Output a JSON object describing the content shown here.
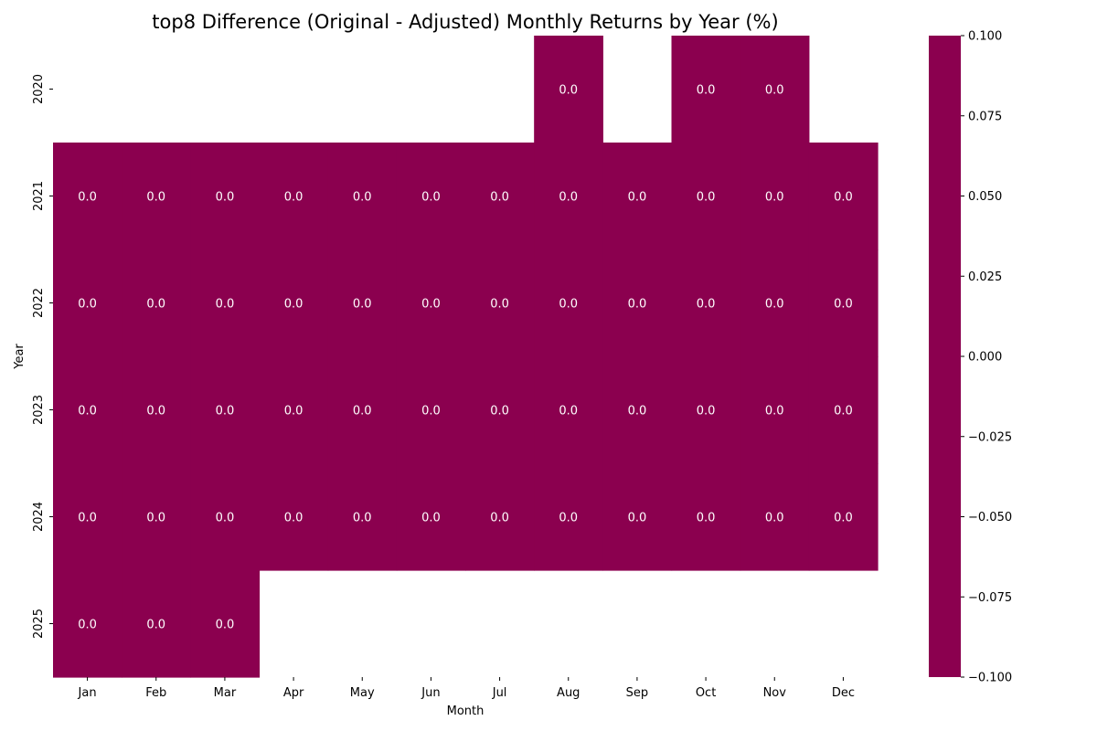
{
  "chart_data": {
    "type": "heatmap",
    "title": "top8 Difference (Original - Adjusted) Monthly Returns by Year (%)",
    "xlabel": "Month",
    "ylabel": "Year",
    "x_categories": [
      "Jan",
      "Feb",
      "Mar",
      "Apr",
      "May",
      "Jun",
      "Jul",
      "Aug",
      "Sep",
      "Oct",
      "Nov",
      "Dec"
    ],
    "y_categories": [
      "2020",
      "2021",
      "2022",
      "2023",
      "2024",
      "2025"
    ],
    "values": [
      [
        null,
        null,
        null,
        null,
        null,
        null,
        null,
        0.0,
        null,
        0.0,
        0.0,
        null
      ],
      [
        0.0,
        0.0,
        0.0,
        0.0,
        0.0,
        0.0,
        0.0,
        0.0,
        0.0,
        0.0,
        0.0,
        0.0
      ],
      [
        0.0,
        0.0,
        0.0,
        0.0,
        0.0,
        0.0,
        0.0,
        0.0,
        0.0,
        0.0,
        0.0,
        0.0
      ],
      [
        0.0,
        0.0,
        0.0,
        0.0,
        0.0,
        0.0,
        0.0,
        0.0,
        0.0,
        0.0,
        0.0,
        0.0
      ],
      [
        0.0,
        0.0,
        0.0,
        0.0,
        0.0,
        0.0,
        0.0,
        0.0,
        0.0,
        0.0,
        0.0,
        0.0
      ],
      [
        0.0,
        0.0,
        0.0,
        null,
        null,
        null,
        null,
        null,
        null,
        null,
        null,
        null
      ]
    ],
    "cell_labels": [
      [
        null,
        null,
        null,
        null,
        null,
        null,
        null,
        "0.0",
        null,
        "0.0",
        "0.0",
        null
      ],
      [
        "0.0",
        "0.0",
        "0.0",
        "0.0",
        "0.0",
        "0.0",
        "0.0",
        "0.0",
        "0.0",
        "0.0",
        "0.0",
        "0.0"
      ],
      [
        "0.0",
        "0.0",
        "0.0",
        "0.0",
        "0.0",
        "0.0",
        "0.0",
        "0.0",
        "0.0",
        "0.0",
        "0.0",
        "0.0"
      ],
      [
        "0.0",
        "0.0",
        "0.0",
        "0.0",
        "0.0",
        "0.0",
        "0.0",
        "0.0",
        "0.0",
        "0.0",
        "0.0",
        "0.0"
      ],
      [
        "0.0",
        "0.0",
        "0.0",
        "0.0",
        "0.0",
        "0.0",
        "0.0",
        "0.0",
        "0.0",
        "0.0",
        "0.0",
        "0.0"
      ],
      [
        "0.0",
        "0.0",
        "0.0",
        null,
        null,
        null,
        null,
        null,
        null,
        null,
        null,
        null
      ]
    ],
    "colorbar": {
      "range": [
        -0.1,
        0.1
      ],
      "ticks": [
        0.1,
        0.075,
        0.05,
        0.025,
        0.0,
        -0.025,
        -0.05,
        -0.075,
        -0.1
      ],
      "tick_labels": [
        "0.100",
        "0.075",
        "0.050",
        "0.025",
        "0.000",
        "−0.025",
        "−0.050",
        "−0.075",
        "−0.100"
      ]
    },
    "cell_color": "#8b004f",
    "background_color": "#ffffff",
    "grid": false
  }
}
